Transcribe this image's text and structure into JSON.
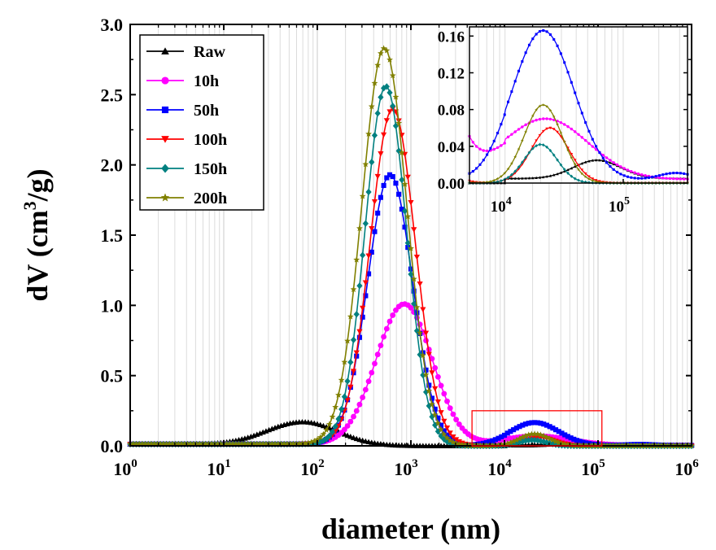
{
  "chart_data": [
    {
      "type": "line",
      "xscale": "log",
      "xlabel": "diameter (nm)",
      "ylabel": "dV (cm3/g)",
      "ylabel_parts": {
        "base": "dV (cm",
        "sup": "3",
        "tail": "/g)"
      },
      "xlim": [
        1,
        1000000
      ],
      "ylim": [
        0,
        3.0
      ],
      "xticks": [
        {
          "value": 1,
          "base": "10",
          "exp": "0"
        },
        {
          "value": 10,
          "base": "10",
          "exp": "1"
        },
        {
          "value": 100,
          "base": "10",
          "exp": "2"
        },
        {
          "value": 1000,
          "base": "10",
          "exp": "3"
        },
        {
          "value": 10000,
          "base": "10",
          "exp": "4"
        },
        {
          "value": 100000,
          "base": "10",
          "exp": "5"
        },
        {
          "value": 1000000,
          "base": "10",
          "exp": "6"
        }
      ],
      "yticks": [
        {
          "value": 0,
          "label": "0.0"
        },
        {
          "value": 0.5,
          "label": "0.5"
        },
        {
          "value": 1.0,
          "label": "1.0"
        },
        {
          "value": 1.5,
          "label": "1.5"
        },
        {
          "value": 2.0,
          "label": "2.0"
        },
        {
          "value": 2.5,
          "label": "2.5"
        },
        {
          "value": 3.0,
          "label": "3.0"
        }
      ],
      "grid": "vertical-minor",
      "legend_position": "top-left",
      "zoom_box": {
        "x": [
          4500,
          110000
        ],
        "y": [
          0,
          0.25
        ],
        "color": "#ff0000"
      },
      "series": [
        {
          "name": "Raw",
          "color": "#000000",
          "marker": "triangle-up",
          "peaks": [
            {
              "center": 70,
              "sigma_decades": 0.37,
              "height": 0.17
            },
            {
              "center": 60000,
              "sigma_decades": 0.2,
              "height": 0.02
            }
          ],
          "base_left": 0.012,
          "base_right": 0.005
        },
        {
          "name": "10h",
          "color": "#ff00ff",
          "marker": "circle",
          "peaks": [
            {
              "center": 850,
              "sigma_decades": 0.3,
              "height": 1.01
            },
            {
              "center": 22000,
              "sigma_decades": 0.36,
              "height": 0.066
            }
          ],
          "base_left": 0.012,
          "base_right": 0.004
        },
        {
          "name": "50h",
          "color": "#0000ff",
          "marker": "square",
          "peaks": [
            {
              "center": 600,
              "sigma_decades": 0.24,
              "height": 1.93
            },
            {
              "center": 21000,
              "sigma_decades": 0.26,
              "height": 0.163
            },
            {
              "center": 280000,
              "sigma_decades": 0.15,
              "height": 0.008
            }
          ],
          "base_left": 0.012,
          "base_right": 0.003
        },
        {
          "name": "100h",
          "color": "#ff0000",
          "marker": "triangle-down",
          "peaks": [
            {
              "center": 640,
              "sigma_decades": 0.24,
              "height": 2.4
            },
            {
              "center": 24000,
              "sigma_decades": 0.16,
              "height": 0.06
            }
          ],
          "base_left": 0.012,
          "base_right": 0.0
        },
        {
          "name": "150h",
          "color": "#008080",
          "marker": "diamond",
          "peaks": [
            {
              "center": 540,
              "sigma_decades": 0.22,
              "height": 2.56
            },
            {
              "center": 20000,
              "sigma_decades": 0.14,
              "height": 0.042
            }
          ],
          "base_left": 0.012,
          "base_right": 0.0
        },
        {
          "name": "200h",
          "color": "#808000",
          "marker": "star",
          "peaks": [
            {
              "center": 520,
              "sigma_decades": 0.24,
              "height": 2.83
            },
            {
              "center": 21000,
              "sigma_decades": 0.16,
              "height": 0.085
            }
          ],
          "base_left": 0.012,
          "base_right": 0.0
        }
      ]
    },
    {
      "type": "line",
      "role": "inset",
      "xscale": "log",
      "xlim": [
        5000,
        350000
      ],
      "ylim": [
        0,
        0.17
      ],
      "xticks": [
        {
          "value": 10000,
          "base": "10",
          "exp": "4"
        },
        {
          "value": 100000,
          "base": "10",
          "exp": "5"
        }
      ],
      "yticks": [
        {
          "value": 0,
          "label": "0.00"
        },
        {
          "value": 0.04,
          "label": "0.04"
        },
        {
          "value": 0.08,
          "label": "0.08"
        },
        {
          "value": 0.12,
          "label": "0.12"
        },
        {
          "value": 0.16,
          "label": "0.16"
        }
      ],
      "grid": "vertical-minor"
    }
  ]
}
